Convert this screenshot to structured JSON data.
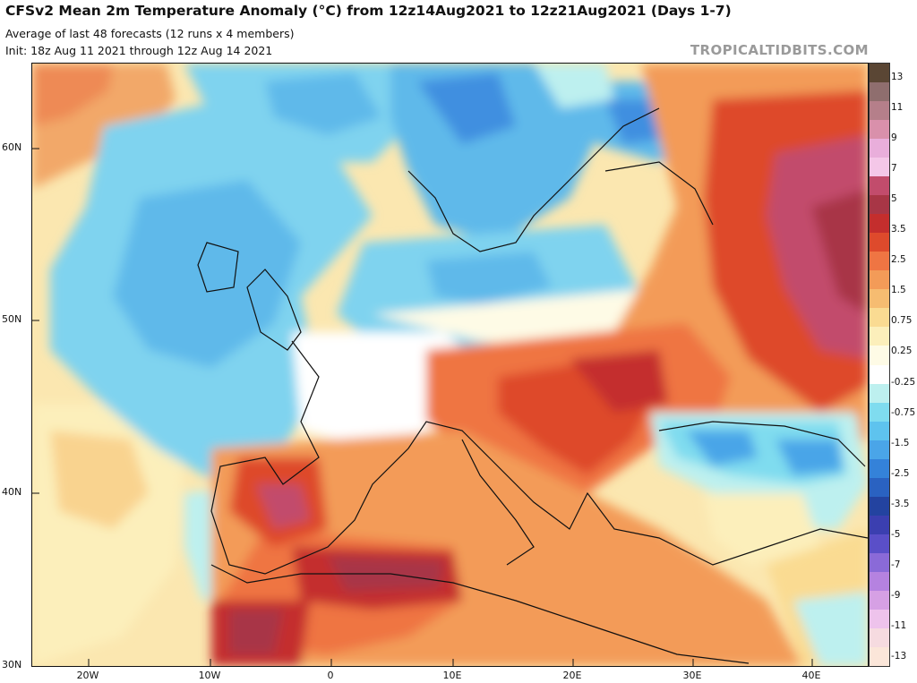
{
  "header": {
    "title": "CFSv2 Mean 2m Temperature Anomaly (°C) from 12z14Aug2021 to 12z21Aug2021 (Days 1-7)",
    "subtitle1": "Average of last 48 forecasts (12 runs x 4 members)",
    "subtitle2": "Init: 18z Aug 11 2021 through 12z Aug 14 2021",
    "brand": "TROPICALTIDBITS.COM"
  },
  "map": {
    "lat_labels": [
      "60N",
      "50N",
      "40N",
      "30N"
    ],
    "lon_labels": [
      "20W",
      "10W",
      "0",
      "10E",
      "20E",
      "30E",
      "40E"
    ]
  },
  "colorbar": {
    "labels": [
      "13",
      "11",
      "9",
      "7",
      "5",
      "3.5",
      "2.5",
      "1.5",
      "0.75",
      "0.25",
      "-0.25",
      "-0.75",
      "-1.5",
      "-2.5",
      "-3.5",
      "-5",
      "-7",
      "-9",
      "-11",
      "-13"
    ],
    "colors": [
      "#5a4634",
      "#8f6e6e",
      "#b57f8a",
      "#d990ab",
      "#e9aedb",
      "#f4c7e8",
      "#c24c6c",
      "#a83646",
      "#c42e2d",
      "#de4a2c",
      "#ef7543",
      "#f39b58",
      "#f6bc71",
      "#fadb92",
      "#fcefbb",
      "#fefbe6",
      "#ffffff",
      "#bdf0ef",
      "#7fdcef",
      "#5ec3ee",
      "#4aa5e8",
      "#3482d9",
      "#2a62c1",
      "#2343a0",
      "#3b3fb0",
      "#5a4fc8",
      "#8a6ad8",
      "#b582e0",
      "#d6a0e4",
      "#eec3ec",
      "#f6dbe0",
      "#fbe6d9"
    ]
  }
}
